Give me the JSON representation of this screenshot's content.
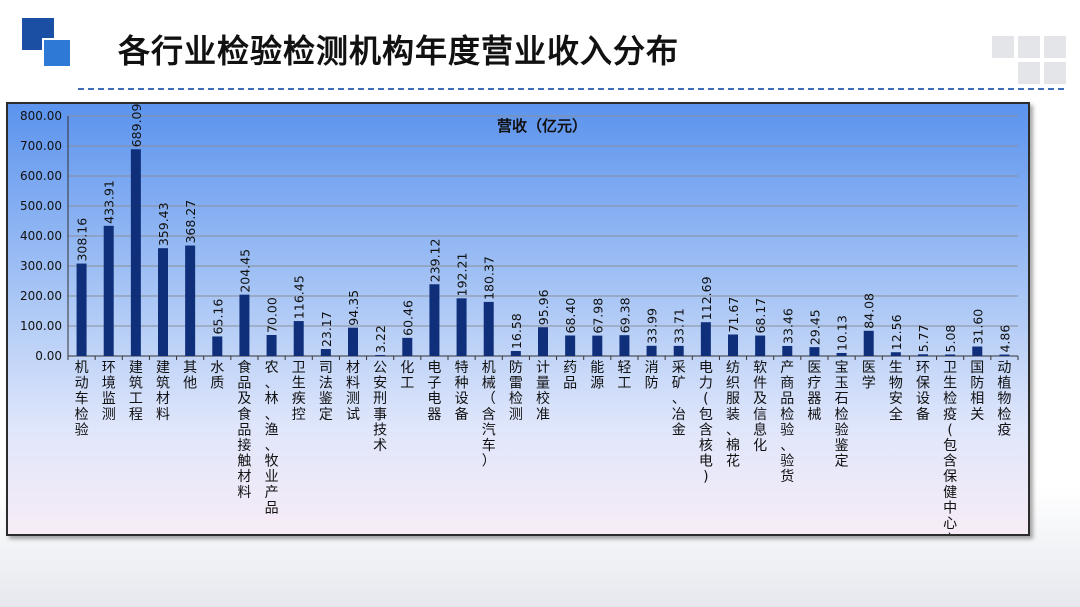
{
  "header": {
    "title": "各行业检验检测机构年度营业收入分布"
  },
  "colors": {
    "bar": "#0f2f7a",
    "frame_top": "#5b93ee",
    "frame_bottom": "#f7ecf6",
    "logo_dark": "#1b4fa3",
    "logo_light": "#2f79d6"
  },
  "chart_data": {
    "type": "bar",
    "title": "营收（亿元）",
    "xlabel": "",
    "ylabel": "",
    "ylim": [
      0,
      800
    ],
    "yticks": [
      "0.00",
      "100.00",
      "200.00",
      "300.00",
      "400.00",
      "500.00",
      "600.00",
      "700.00",
      "800.00"
    ],
    "grid": true,
    "categories": [
      "机动车检验",
      "环境监测",
      "建筑工程",
      "建筑材料",
      "其他",
      "水质",
      "食品及食品接触材料",
      "农、林、渔、牧业产品",
      "卫生疾控",
      "司法鉴定",
      "材料测试",
      "公安刑事技术",
      "化工",
      "电子电器",
      "特种设备",
      "机械（含汽车）",
      "防雷检测",
      "计量校准",
      "药品",
      "能源",
      "轻工",
      "消防",
      "采矿、冶金",
      "电力(包含核电)",
      "纺织服装、棉花",
      "软件及信息化",
      "产商品检验、验货",
      "医疗器械",
      "宝玉石检验鉴定",
      "医学",
      "生物安全",
      "环保设备",
      "卫生检疫(包含保健中心)",
      "国防相关",
      "动植物检疫"
    ],
    "values": [
      308.16,
      433.91,
      689.09,
      359.43,
      368.27,
      65.16,
      204.45,
      70.0,
      116.45,
      23.17,
      94.35,
      3.22,
      60.46,
      239.12,
      192.21,
      180.37,
      16.58,
      95.96,
      68.4,
      67.98,
      69.38,
      33.99,
      33.71,
      112.69,
      71.67,
      68.17,
      33.46,
      29.45,
      10.13,
      84.08,
      12.56,
      5.77,
      5.08,
      31.6,
      4.86
    ],
    "value_labels": [
      "308.16",
      "433.91",
      "689.09",
      "359.43",
      "368.27",
      "65.16",
      "204.45",
      "70.00",
      "116.45",
      "23.17",
      "94.35",
      "3.22",
      "60.46",
      "239.12",
      "192.21",
      "180.37",
      "16.58",
      "95.96",
      "68.40",
      "67.98",
      "69.38",
      "33.99",
      "33.71",
      "112.69",
      "71.67",
      "68.17",
      "33.46",
      "29.45",
      "10.13",
      "84.08",
      "12.56",
      "5.77",
      "5.08",
      "31.60",
      "4.86"
    ]
  }
}
